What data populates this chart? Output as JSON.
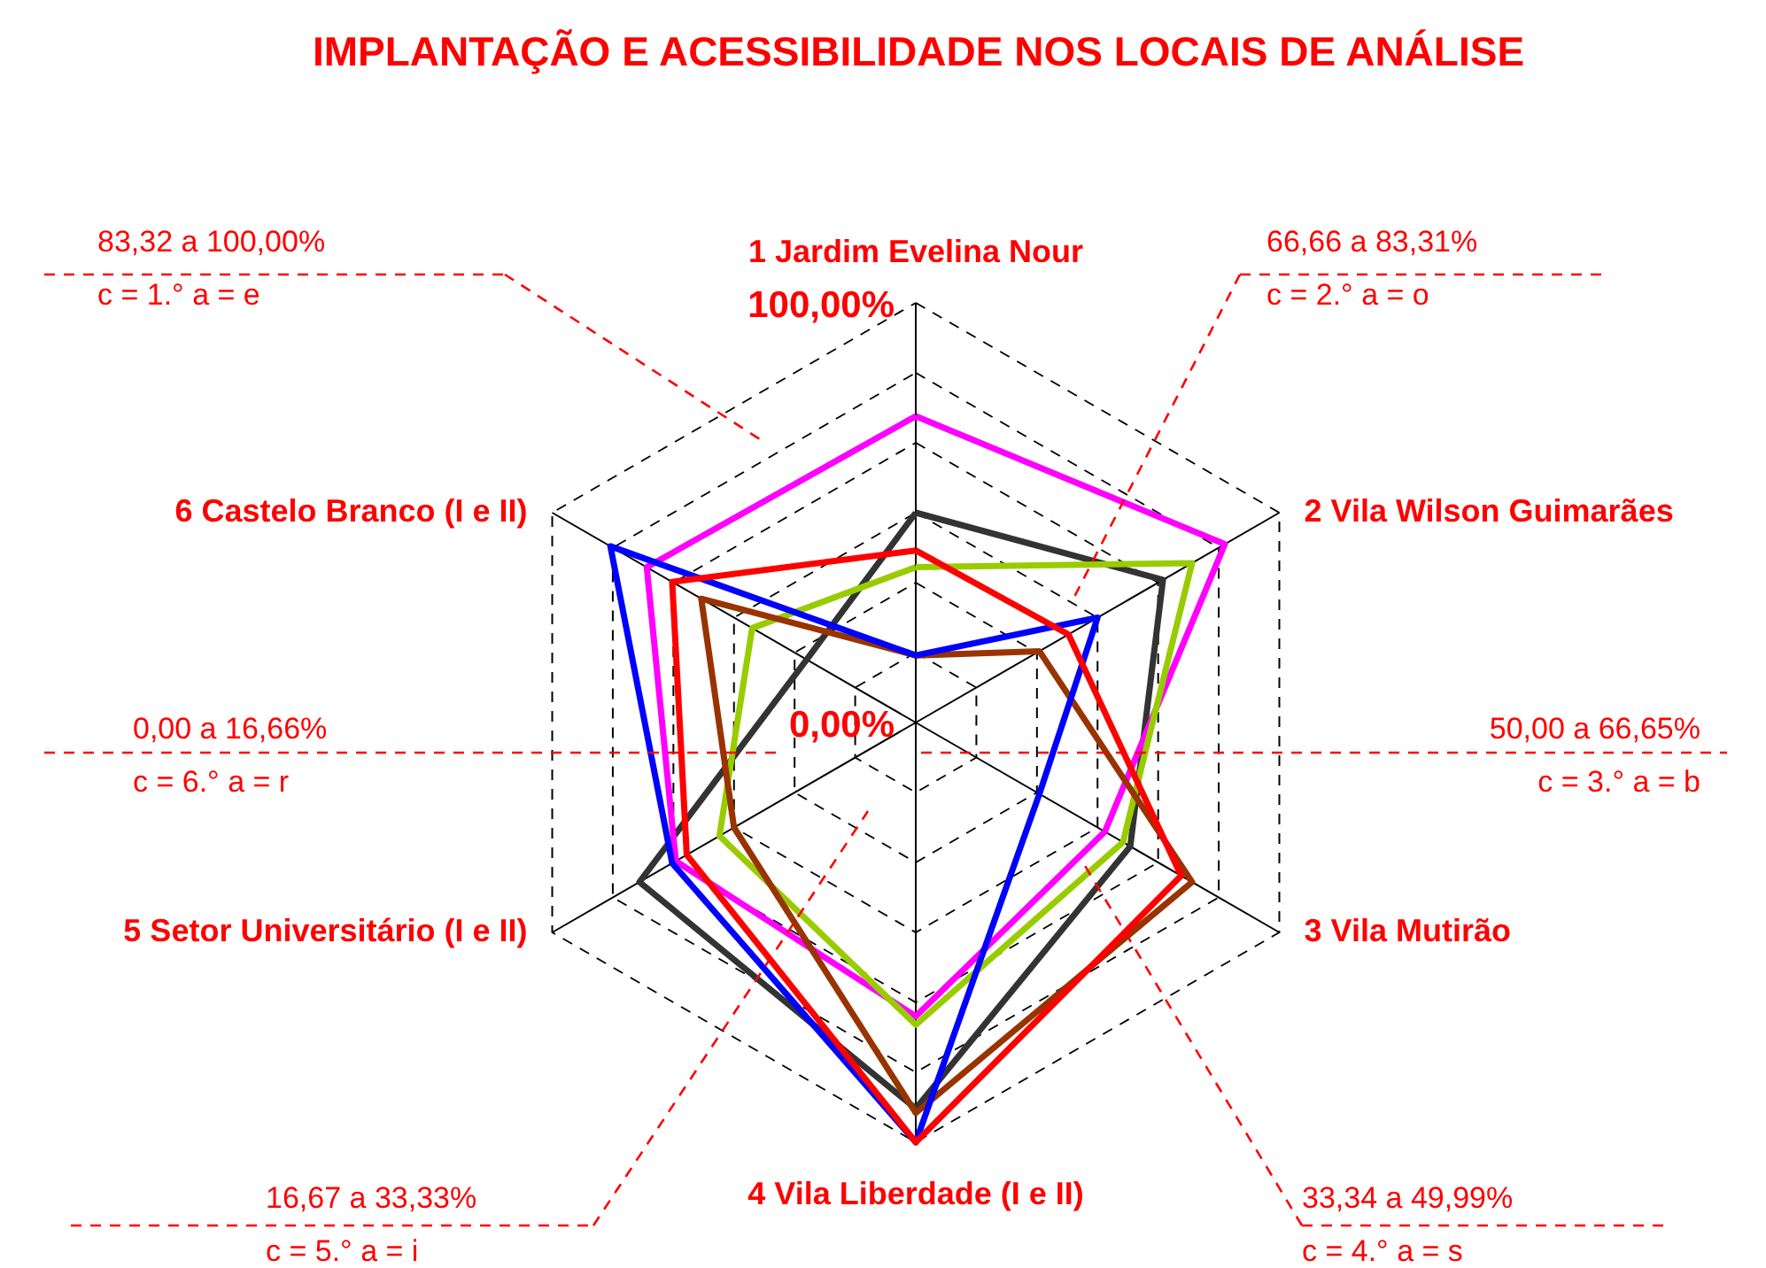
{
  "chart_data": {
    "type": "radar",
    "title": "IMPLANTAÇÃO E ACESSIBILIDADE NOS LOCAIS DE ANÁLISE",
    "categories": [
      "1 Jardim Evelina Nour",
      "2 Vila Wilson Guimarães",
      "3 Vila Mutirão",
      "4 Vila Liberdade (I e II)",
      "5 Setor Universitário (I e II)",
      "6 Castelo Branco (I e II)"
    ],
    "ylim": [
      0,
      100
    ],
    "yticks": [
      {
        "value": 0,
        "label": "0,00%"
      },
      {
        "value": 100,
        "label": "100,00%"
      }
    ],
    "grid": true,
    "series": [
      {
        "color": "#333333",
        "values": [
          50,
          68,
          59,
          92,
          76,
          30
        ]
      },
      {
        "color": "#ff00ff",
        "values": [
          73,
          85,
          52,
          70,
          66,
          74
        ]
      },
      {
        "color": "#99cc00",
        "values": [
          37,
          76,
          57,
          72,
          54,
          45
        ]
      },
      {
        "color": "#993300",
        "values": [
          16,
          34,
          76,
          93,
          50,
          59
        ]
      },
      {
        "color": "#0000ff",
        "values": [
          16,
          50,
          34,
          100,
          67,
          84
        ]
      },
      {
        "color": "#ff0000",
        "values": [
          41,
          42,
          73,
          100,
          63,
          67
        ]
      }
    ],
    "annotations": [
      "83,32 a 100,00%",
      "c = 1.°       a = e",
      "66,66 a 83,31%",
      "c = 2.°       a = o",
      "50,00 a 66,65%",
      "c = 3.°       a = b",
      "33,34 a 49,99%",
      "c = 4.°       a = s",
      "16,67 a 33,33%",
      "c = 5.°       a = i",
      "0,00 a 16,66%",
      "c = 6.°     a = r"
    ]
  }
}
